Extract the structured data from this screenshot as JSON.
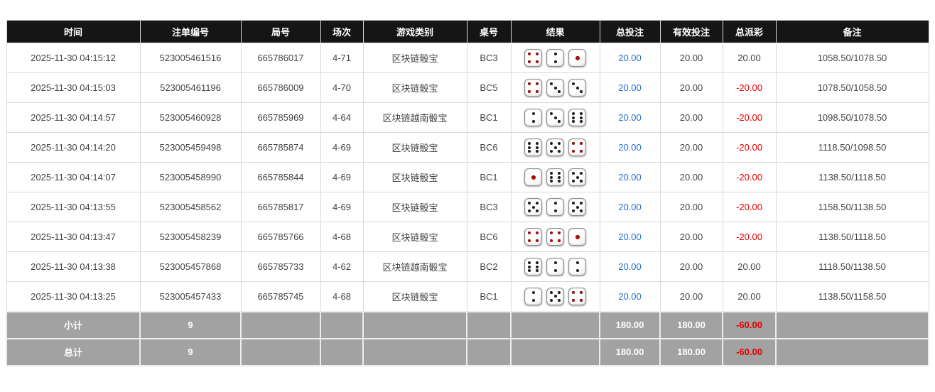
{
  "table": {
    "columns": [
      {
        "key": "time",
        "label": "时间"
      },
      {
        "key": "bet_id",
        "label": "注单编号"
      },
      {
        "key": "round_id",
        "label": "局号"
      },
      {
        "key": "session",
        "label": "场次"
      },
      {
        "key": "game_type",
        "label": "游戏类别"
      },
      {
        "key": "table_no",
        "label": "桌号"
      },
      {
        "key": "result",
        "label": "结果"
      },
      {
        "key": "total_bet",
        "label": "总投注"
      },
      {
        "key": "valid_bet",
        "label": "有效投注"
      },
      {
        "key": "payout",
        "label": "总派彩"
      },
      {
        "key": "remark",
        "label": "备注"
      }
    ],
    "rows": [
      {
        "time": "2025-11-30 04:15:12",
        "bet_id": "523005461516",
        "round_id": "665786017",
        "session": "4-71",
        "game_type": "区块链骰宝",
        "table_no": "BC3",
        "result": [
          4,
          2,
          1
        ],
        "total_bet": "20.00",
        "valid_bet": "20.00",
        "payout": "20.00",
        "remark": "1058.50/1078.50"
      },
      {
        "time": "2025-11-30 04:15:03",
        "bet_id": "523005461196",
        "round_id": "665786009",
        "session": "4-70",
        "game_type": "区块链骰宝",
        "table_no": "BC5",
        "result": [
          4,
          3,
          3
        ],
        "total_bet": "20.00",
        "valid_bet": "20.00",
        "payout": "-20.00",
        "remark": "1078.50/1058.50"
      },
      {
        "time": "2025-11-30 04:14:57",
        "bet_id": "523005460928",
        "round_id": "665785969",
        "session": "4-64",
        "game_type": "区块链越南骰宝",
        "table_no": "BC1",
        "result": [
          2,
          3,
          6
        ],
        "total_bet": "20.00",
        "valid_bet": "20.00",
        "payout": "-20.00",
        "remark": "1098.50/1078.50"
      },
      {
        "time": "2025-11-30 04:14:20",
        "bet_id": "523005459498",
        "round_id": "665785874",
        "session": "4-69",
        "game_type": "区块链骰宝",
        "table_no": "BC6",
        "result": [
          6,
          5,
          4
        ],
        "total_bet": "20.00",
        "valid_bet": "20.00",
        "payout": "-20.00",
        "remark": "1118.50/1098.50"
      },
      {
        "time": "2025-11-30 04:14:07",
        "bet_id": "523005458990",
        "round_id": "665785844",
        "session": "4-69",
        "game_type": "区块链骰宝",
        "table_no": "BC1",
        "result": [
          1,
          6,
          5
        ],
        "total_bet": "20.00",
        "valid_bet": "20.00",
        "payout": "-20.00",
        "remark": "1138.50/1118.50"
      },
      {
        "time": "2025-11-30 04:13:55",
        "bet_id": "523005458562",
        "round_id": "665785817",
        "session": "4-69",
        "game_type": "区块链骰宝",
        "table_no": "BC3",
        "result": [
          5,
          2,
          5
        ],
        "total_bet": "20.00",
        "valid_bet": "20.00",
        "payout": "-20.00",
        "remark": "1158.50/1138.50"
      },
      {
        "time": "2025-11-30 04:13:47",
        "bet_id": "523005458239",
        "round_id": "665785766",
        "session": "4-68",
        "game_type": "区块链骰宝",
        "table_no": "BC6",
        "result": [
          4,
          4,
          1
        ],
        "total_bet": "20.00",
        "valid_bet": "20.00",
        "payout": "-20.00",
        "remark": "1138.50/1118.50"
      },
      {
        "time": "2025-11-30 04:13:38",
        "bet_id": "523005457868",
        "round_id": "665785733",
        "session": "4-62",
        "game_type": "区块链越南骰宝",
        "table_no": "BC2",
        "result": [
          6,
          2,
          2
        ],
        "total_bet": "20.00",
        "valid_bet": "20.00",
        "payout": "20.00",
        "remark": "1118.50/1138.50"
      },
      {
        "time": "2025-11-30 04:13:25",
        "bet_id": "523005457433",
        "round_id": "665785745",
        "session": "4-68",
        "game_type": "区块链骰宝",
        "table_no": "BC1",
        "result": [
          2,
          5,
          4
        ],
        "total_bet": "20.00",
        "valid_bet": "20.00",
        "payout": "20.00",
        "remark": "1138.50/1158.50"
      }
    ],
    "footer": [
      {
        "label": "小计",
        "count": "9",
        "total_bet": "180.00",
        "valid_bet": "180.00",
        "payout": "-60.00"
      },
      {
        "label": "总计",
        "count": "9",
        "total_bet": "180.00",
        "valid_bet": "180.00",
        "payout": "-60.00"
      }
    ],
    "colors": {
      "header_bg": "#151515",
      "link_blue": "#2a6fd9",
      "negative_red": "#e60000",
      "footer_bg": "#a2a2a2",
      "dice_red": "#b11212",
      "dice_black": "#1c1c1c"
    }
  }
}
